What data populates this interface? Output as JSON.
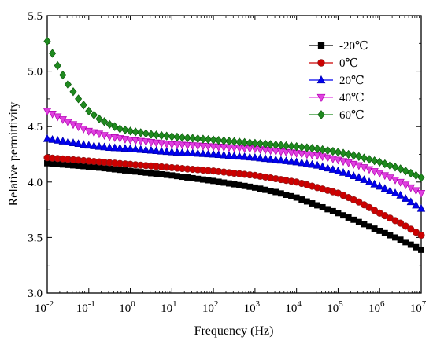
{
  "chart_data": {
    "type": "scatter",
    "xlabel": "Frequency (Hz)",
    "ylabel": "Relative permittivity",
    "xscale": "log",
    "xlim": [
      0.01,
      10000000
    ],
    "ylim": [
      3.0,
      5.5
    ],
    "grid": false,
    "legend_position": "top-right",
    "x_ticks": [
      {
        "base": "10",
        "exp": "-2"
      },
      {
        "base": "10",
        "exp": "-1"
      },
      {
        "base": "10",
        "exp": "0"
      },
      {
        "base": "10",
        "exp": "1"
      },
      {
        "base": "10",
        "exp": "2"
      },
      {
        "base": "10",
        "exp": "3"
      },
      {
        "base": "10",
        "exp": "4"
      },
      {
        "base": "10",
        "exp": "5"
      },
      {
        "base": "10",
        "exp": "6"
      },
      {
        "base": "10",
        "exp": "7"
      }
    ],
    "y_ticks": [
      "3.0",
      "3.5",
      "4.0",
      "4.5",
      "5.0",
      "5.5"
    ],
    "series": [
      {
        "name": "-20℃",
        "marker": "square",
        "color": "#000000",
        "edge": "#000000",
        "points": [
          [
            -2,
            4.17
          ],
          [
            -1,
            4.14
          ],
          [
            0,
            4.1
          ],
          [
            1,
            4.06
          ],
          [
            2,
            4.01
          ],
          [
            3,
            3.95
          ],
          [
            3.5,
            3.91
          ],
          [
            4,
            3.86
          ],
          [
            4.5,
            3.79
          ],
          [
            5,
            3.72
          ],
          [
            5.5,
            3.64
          ],
          [
            6,
            3.56
          ],
          [
            6.5,
            3.48
          ],
          [
            7,
            3.39
          ]
        ]
      },
      {
        "name": "0℃",
        "marker": "circle",
        "color": "#cc0000",
        "edge": "#8b1a1a",
        "points": [
          [
            -2,
            4.22
          ],
          [
            -1,
            4.19
          ],
          [
            0,
            4.16
          ],
          [
            1,
            4.13
          ],
          [
            2,
            4.1
          ],
          [
            3,
            4.06
          ],
          [
            3.5,
            4.03
          ],
          [
            4,
            4.0
          ],
          [
            4.5,
            3.95
          ],
          [
            5,
            3.9
          ],
          [
            5.5,
            3.82
          ],
          [
            6,
            3.72
          ],
          [
            6.5,
            3.63
          ],
          [
            7,
            3.52
          ]
        ]
      },
      {
        "name": "20℃",
        "marker": "triangle-up",
        "color": "#0000ee",
        "edge": "#0000aa",
        "points": [
          [
            -2,
            4.39
          ],
          [
            -1.5,
            4.36
          ],
          [
            -1,
            4.33
          ],
          [
            -0.5,
            4.31
          ],
          [
            0,
            4.3
          ],
          [
            1,
            4.27
          ],
          [
            2,
            4.25
          ],
          [
            3,
            4.22
          ],
          [
            4,
            4.18
          ],
          [
            4.5,
            4.15
          ],
          [
            5,
            4.1
          ],
          [
            5.5,
            4.04
          ],
          [
            6,
            3.96
          ],
          [
            6.5,
            3.88
          ],
          [
            7,
            3.76
          ]
        ]
      },
      {
        "name": "40℃",
        "marker": "triangle-down",
        "color": "#e040e0",
        "edge": "#b000b0",
        "points": [
          [
            -2,
            4.64
          ],
          [
            -1.5,
            4.54
          ],
          [
            -1,
            4.46
          ],
          [
            -0.5,
            4.41
          ],
          [
            0,
            4.38
          ],
          [
            1,
            4.34
          ],
          [
            2,
            4.32
          ],
          [
            3,
            4.3
          ],
          [
            4,
            4.26
          ],
          [
            4.5,
            4.24
          ],
          [
            5,
            4.2
          ],
          [
            5.5,
            4.15
          ],
          [
            6,
            4.08
          ],
          [
            6.5,
            4.0
          ],
          [
            7,
            3.9
          ]
        ]
      },
      {
        "name": "60℃",
        "marker": "diamond",
        "color": "#1f8a1f",
        "edge": "#0c5a0c",
        "points": [
          [
            -2,
            5.27
          ],
          [
            -1.75,
            5.05
          ],
          [
            -1.5,
            4.88
          ],
          [
            -1.25,
            4.75
          ],
          [
            -1,
            4.64
          ],
          [
            -0.75,
            4.57
          ],
          [
            -0.5,
            4.52
          ],
          [
            -0.25,
            4.48
          ],
          [
            0,
            4.46
          ],
          [
            0.5,
            4.43
          ],
          [
            1,
            4.41
          ],
          [
            2,
            4.38
          ],
          [
            3,
            4.35
          ],
          [
            4,
            4.32
          ],
          [
            4.5,
            4.3
          ],
          [
            5,
            4.27
          ],
          [
            5.5,
            4.23
          ],
          [
            6,
            4.18
          ],
          [
            6.5,
            4.12
          ],
          [
            7,
            4.04
          ]
        ]
      }
    ]
  }
}
